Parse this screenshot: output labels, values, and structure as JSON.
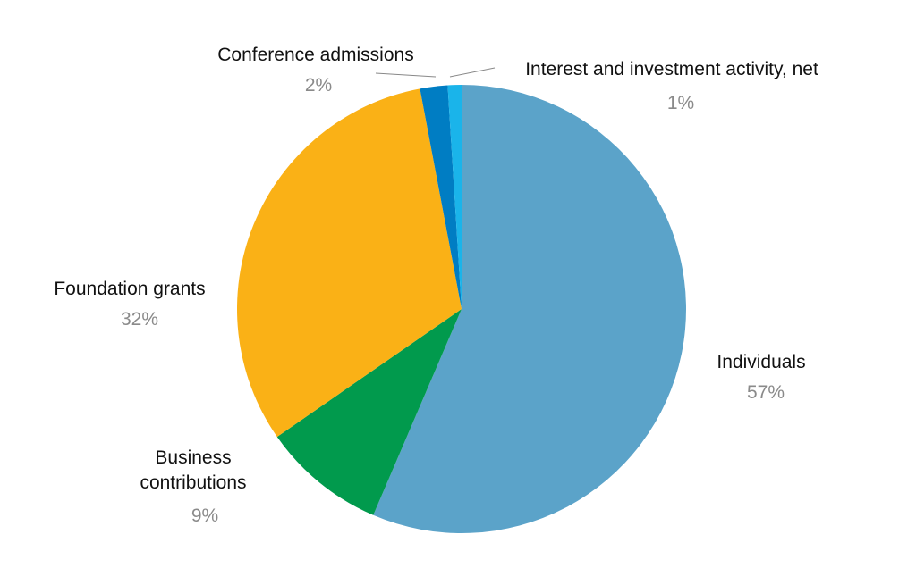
{
  "chart_data": {
    "type": "pie",
    "title": "",
    "start": "top",
    "direction": "clockwise",
    "slices": [
      {
        "label": "Individuals",
        "value": 57,
        "pct_label": "57%",
        "color": "#5ba3c9"
      },
      {
        "label": "Business contributions",
        "label_lines": [
          "Business",
          "contributions"
        ],
        "value": 9,
        "pct_label": "9%",
        "color": "#019a4d"
      },
      {
        "label": "Foundation grants",
        "value": 32,
        "pct_label": "32%",
        "color": "#fab116"
      },
      {
        "label": "Conference admissions",
        "value": 2,
        "pct_label": "2%",
        "color": "#007dc3"
      },
      {
        "label": "Interest and investment activity, net",
        "value": 1,
        "pct_label": "1%",
        "color": "#1ab4ea"
      }
    ]
  }
}
